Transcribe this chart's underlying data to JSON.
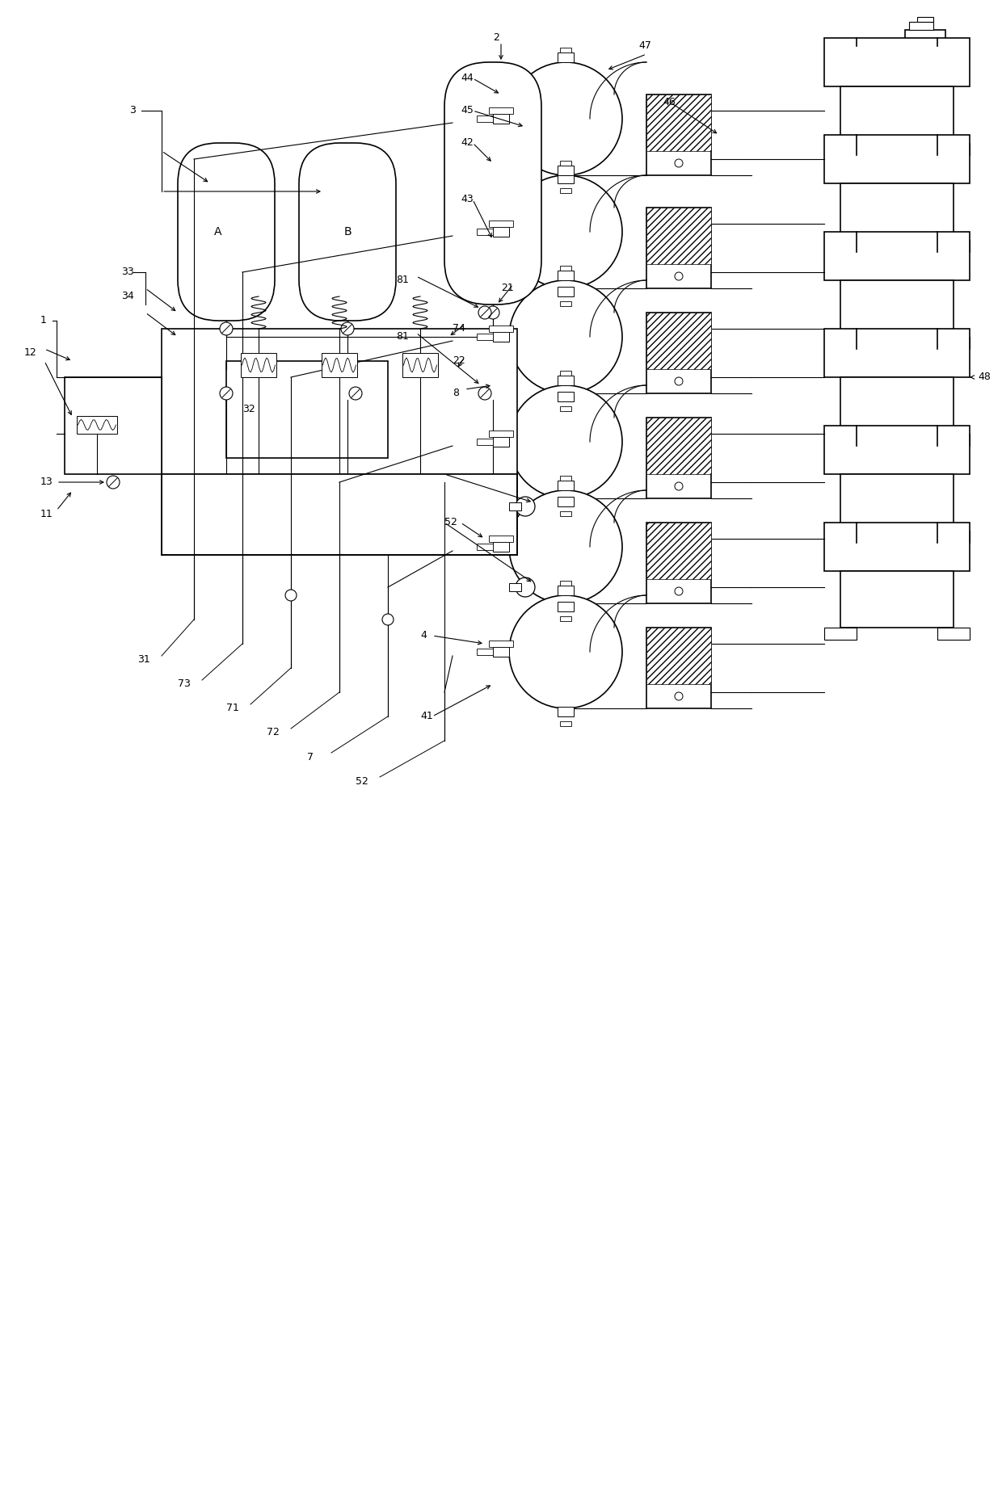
{
  "bg_color": "#ffffff",
  "fig_width": 12.4,
  "fig_height": 18.67,
  "dpi": 100
}
